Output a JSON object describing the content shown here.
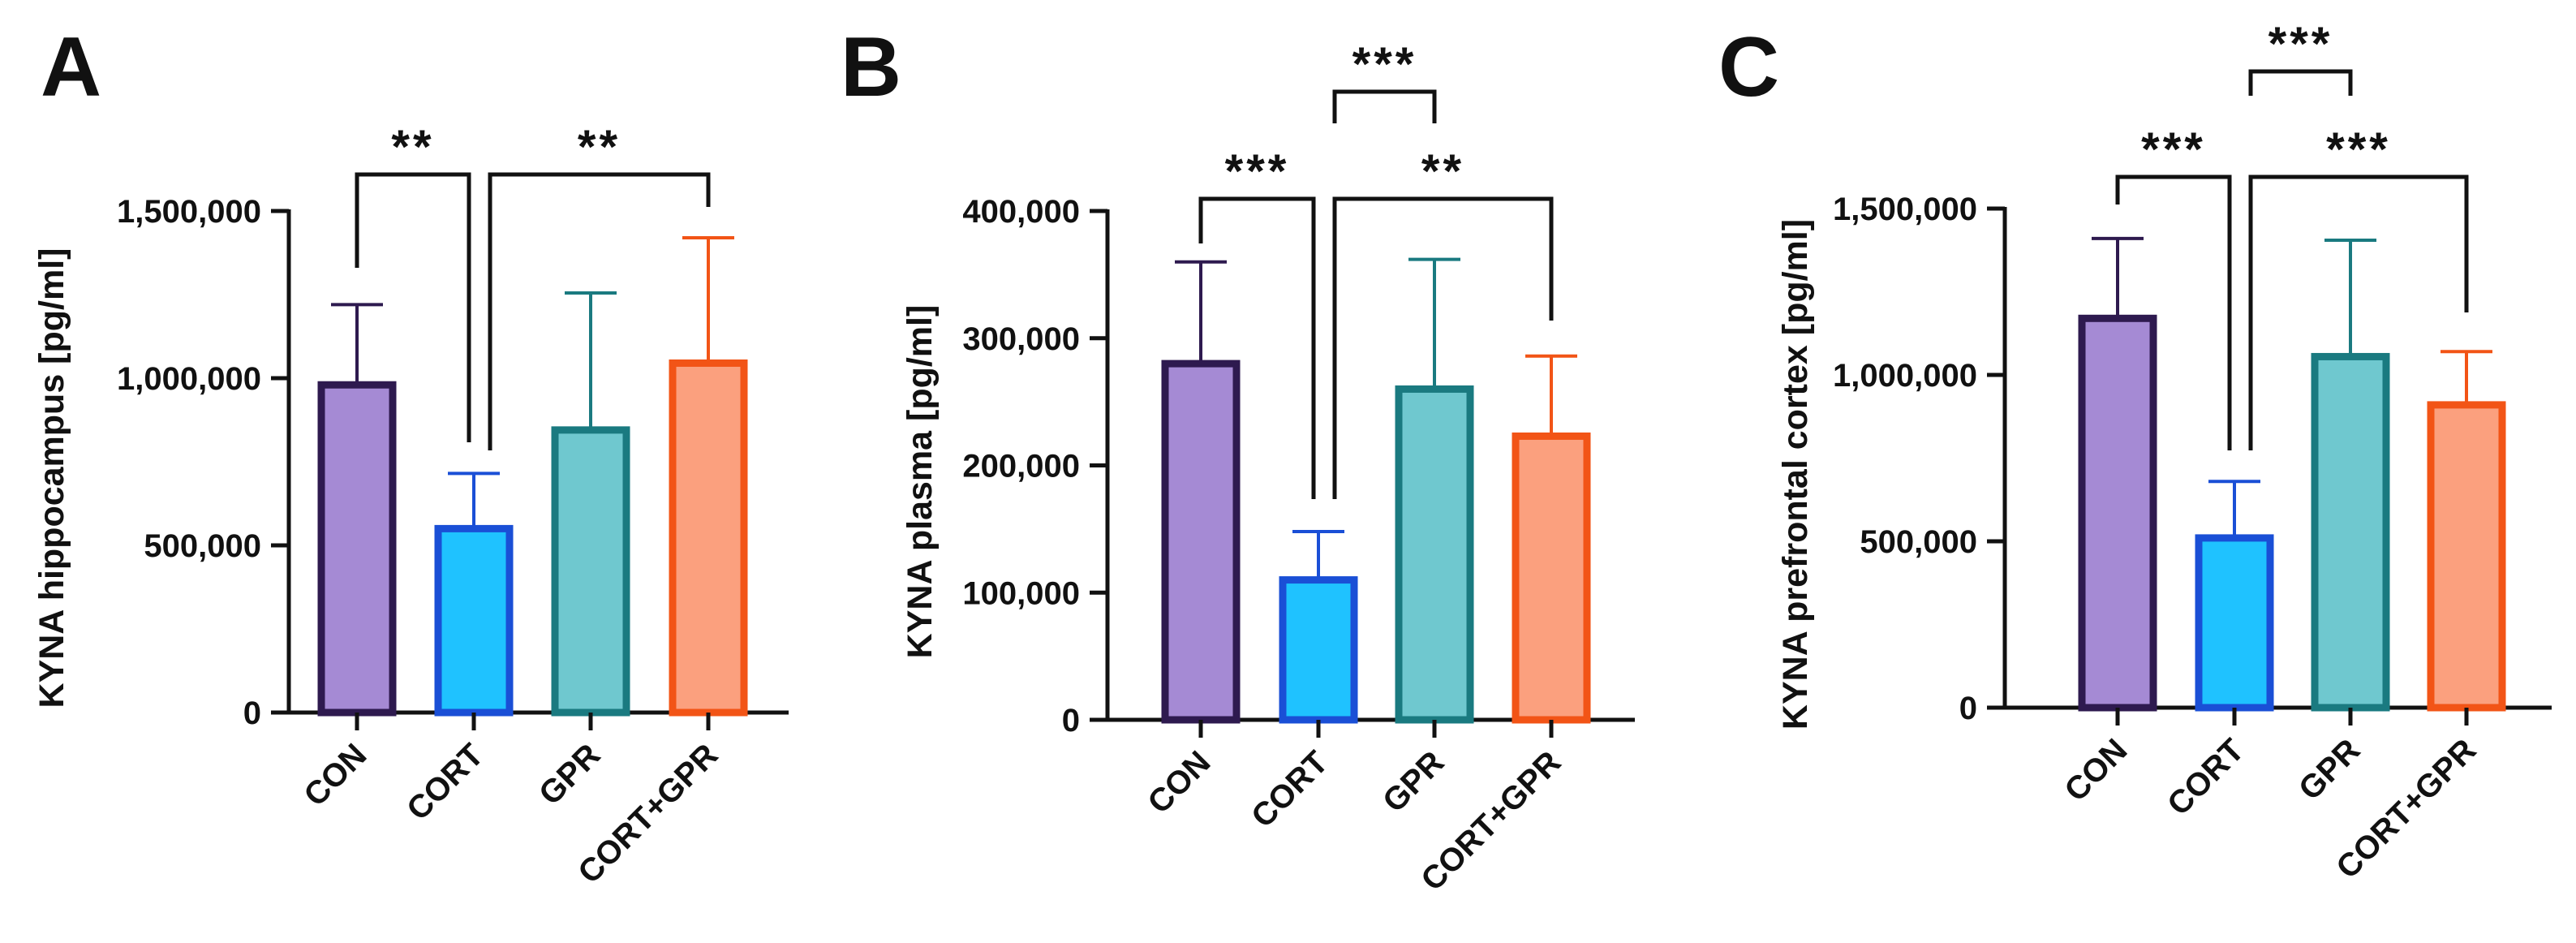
{
  "chart_data": [
    {
      "type": "bar",
      "panel_label": "A",
      "ylabel": "KYNA hippocampus [pg/ml]",
      "xlabel": "",
      "ylim": [
        0,
        1500000
      ],
      "yticks": [
        0,
        500000,
        1000000,
        1500000
      ],
      "ytick_labels": [
        "0",
        "500,000",
        "1,000,000",
        "1,500,000"
      ],
      "categories": [
        "CON",
        "CORT",
        "GPR",
        "CORT+GPR"
      ],
      "values": [
        980000,
        550000,
        845000,
        1045000
      ],
      "error_upper": [
        1220000,
        715000,
        1255000,
        1420000
      ],
      "significance": [
        {
          "from": "CON",
          "to": "CORT",
          "label": "**"
        },
        {
          "from": "CORT",
          "to": "CORT+GPR",
          "label": "**"
        }
      ]
    },
    {
      "type": "bar",
      "panel_label": "B",
      "ylabel": "KYNA plasma [pg/ml]",
      "xlabel": "",
      "ylim": [
        0,
        400000
      ],
      "yticks": [
        0,
        100000,
        200000,
        300000,
        400000
      ],
      "ytick_labels": [
        "0",
        "100,000",
        "200,000",
        "300,000",
        "400,000"
      ],
      "categories": [
        "CON",
        "CORT",
        "GPR",
        "CORT+GPR"
      ],
      "values": [
        280000,
        110000,
        260000,
        223000
      ],
      "error_upper": [
        360000,
        148000,
        362000,
        286000
      ],
      "significance": [
        {
          "from": "CON",
          "to": "CORT",
          "label": "***"
        },
        {
          "from": "CORT",
          "to": "CORT+GPR",
          "label": "**"
        },
        {
          "from": "CORT",
          "to": "GPR",
          "label": "***"
        }
      ]
    },
    {
      "type": "bar",
      "panel_label": "C",
      "ylabel": "KYNA prefrontal cortex [pg/ml]",
      "xlabel": "",
      "ylim": [
        0,
        1500000
      ],
      "yticks": [
        0,
        500000,
        1000000,
        1500000
      ],
      "ytick_labels": [
        "0",
        "500,000",
        "1,000,000",
        "1,500,000"
      ],
      "categories": [
        "CON",
        "CORT",
        "GPR",
        "CORT+GPR"
      ],
      "values": [
        1170000,
        510000,
        1055000,
        910000
      ],
      "error_upper": [
        1410000,
        680000,
        1405000,
        1070000
      ],
      "significance": [
        {
          "from": "CON",
          "to": "CORT",
          "label": "***"
        },
        {
          "from": "CORT",
          "to": "CORT+GPR",
          "label": "***"
        },
        {
          "from": "CORT",
          "to": "GPR",
          "label": "***"
        }
      ]
    }
  ],
  "colors": {
    "CON": {
      "fill": "#a58ad4",
      "stroke": "#2e1a4f"
    },
    "CORT": {
      "fill": "#1fc2ff",
      "stroke": "#1a4fd6"
    },
    "GPR": {
      "fill": "#6fc8cf",
      "stroke": "#1a7a80"
    },
    "CORT+GPR": {
      "fill": "#fba07e",
      "stroke": "#f25416"
    }
  }
}
